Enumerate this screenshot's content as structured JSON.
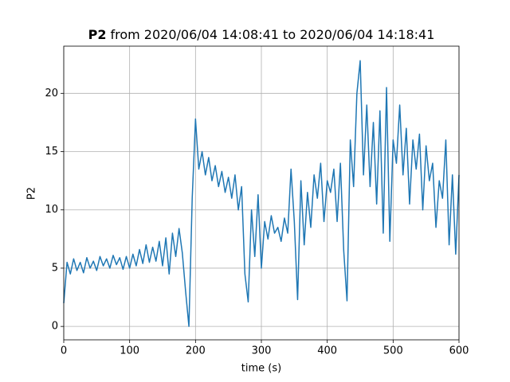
{
  "chart_data": {
    "type": "line",
    "title_prefix": "P2",
    "title": "from 2020/06/04 14:08:41 to 2020/06/04 14:18:41",
    "xlabel": "time (s)",
    "ylabel": "P2",
    "x": [
      0,
      5,
      10,
      15,
      20,
      25,
      30,
      35,
      40,
      45,
      50,
      55,
      60,
      65,
      70,
      75,
      80,
      85,
      90,
      95,
      100,
      105,
      110,
      115,
      120,
      125,
      130,
      135,
      140,
      145,
      150,
      155,
      160,
      165,
      170,
      175,
      180,
      185,
      190,
      195,
      200,
      205,
      210,
      215,
      220,
      225,
      230,
      235,
      240,
      245,
      250,
      255,
      260,
      265,
      270,
      275,
      280,
      285,
      290,
      295,
      300,
      305,
      310,
      315,
      320,
      325,
      330,
      335,
      340,
      345,
      350,
      355,
      360,
      365,
      370,
      375,
      380,
      385,
      390,
      395,
      400,
      405,
      410,
      415,
      420,
      425,
      430,
      435,
      440,
      445,
      450,
      455,
      460,
      465,
      470,
      475,
      480,
      485,
      490,
      495,
      500,
      505,
      510,
      515,
      520,
      525,
      530,
      535,
      540,
      545,
      550,
      555,
      560,
      565,
      570,
      575,
      580,
      585,
      590,
      595,
      600
    ],
    "values": [
      2,
      5.5,
      4.5,
      5.8,
      4.8,
      5.5,
      4.6,
      5.9,
      5,
      5.6,
      4.8,
      6,
      5.2,
      5.8,
      5,
      6.1,
      5.3,
      5.9,
      4.9,
      6,
      5,
      6.2,
      5.2,
      6.6,
      5.4,
      7,
      5.5,
      6.8,
      5.6,
      7.3,
      5.2,
      7.6,
      4.5,
      8,
      6,
      8.4,
      6.3,
      3,
      0,
      11,
      17.8,
      13.5,
      15,
      13,
      14.5,
      12.5,
      13.8,
      12,
      13.3,
      11.5,
      12.8,
      11,
      13,
      10,
      12,
      4.5,
      2.1,
      10,
      6,
      11.3,
      5,
      9,
      7.5,
      9.5,
      8,
      8.5,
      7.3,
      9.3,
      8,
      13.5,
      9,
      2.3,
      12.5,
      7,
      11.5,
      8.5,
      13,
      11,
      14,
      9,
      12.5,
      11.5,
      13.5,
      9,
      14,
      6.5,
      2.2,
      16,
      12,
      20,
      22.8,
      13,
      19,
      12,
      17.5,
      10.5,
      18.5,
      8,
      20.5,
      7.3,
      16,
      14,
      19,
      13,
      17,
      10.5,
      16,
      13.5,
      16.5,
      10,
      15.5,
      12.5,
      14,
      8.5,
      12.5,
      11,
      16,
      7,
      13,
      6.2,
      13
    ],
    "color": "#1f77b4",
    "xlim": [
      0,
      600
    ],
    "xticks": [
      0,
      100,
      200,
      300,
      400,
      500,
      600
    ],
    "ylim": [
      -1.15,
      24.05
    ],
    "yticks": [
      0,
      5,
      10,
      15,
      20
    ],
    "grid": true
  }
}
